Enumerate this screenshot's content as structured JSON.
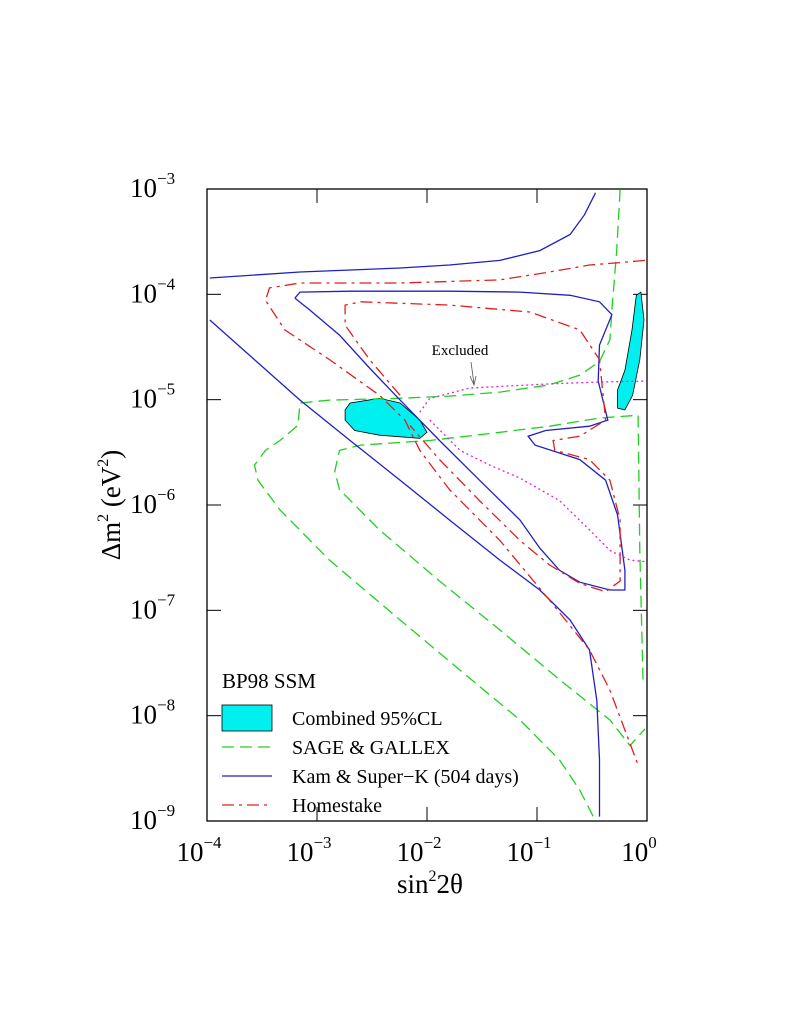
{
  "chart_data": {
    "type": "contour",
    "xscale": "log",
    "yscale": "log",
    "xlim": [
      0.0001,
      1
    ],
    "ylim": [
      1e-09,
      0.001
    ],
    "xticks": [
      {
        "value": 0.0001,
        "label": "10",
        "exponent": "−4"
      },
      {
        "value": 0.001,
        "label": "10",
        "exponent": "−3"
      },
      {
        "value": 0.01,
        "label": "10",
        "exponent": "−2"
      },
      {
        "value": 0.1,
        "label": "10",
        "exponent": "−1"
      },
      {
        "value": 1,
        "label": "10",
        "exponent": "0"
      }
    ],
    "yticks": [
      {
        "value": 1e-09,
        "label": "10",
        "exponent": "−9"
      },
      {
        "value": 1e-08,
        "label": "10",
        "exponent": "−8"
      },
      {
        "value": 1e-07,
        "label": "10",
        "exponent": "−7"
      },
      {
        "value": 1e-06,
        "label": "10",
        "exponent": "−6"
      },
      {
        "value": 1e-05,
        "label": "10",
        "exponent": "−5"
      },
      {
        "value": 0.0001,
        "label": "10",
        "exponent": "−4"
      },
      {
        "value": 0.001,
        "label": "10",
        "exponent": "−3"
      }
    ],
    "x_label": [
      "sin",
      "2",
      "2θ"
    ],
    "y_label": [
      "Δm",
      "2",
      " (eV",
      "2",
      ")"
    ],
    "legend_title": "BP98 SSM",
    "legend": "lower left",
    "annotation": {
      "text": "Excluded",
      "series": 4
    },
    "series": [
      {
        "name": "Combined 95%CL",
        "color": "#00f0f0",
        "line_style": "solid",
        "fill": true,
        "x": [
          0.0018,
          0.002,
          0.0037,
          0.0057,
          0.0086,
          0.01,
          0.0086,
          0.0037,
          0.0022,
          0.0018,
          null,
          0.54,
          0.54,
          0.63,
          0.73,
          0.8,
          0.88,
          0.94,
          0.86,
          0.74,
          0.63
        ],
        "y": [
          8e-06,
          9.3e-06,
          1.03e-05,
          9.3e-06,
          6.4e-06,
          4.9e-06,
          4.3e-06,
          4.6e-06,
          5.1e-06,
          6.4e-06,
          null,
          8.3e-06,
          1.24e-05,
          1.9e-05,
          4.6e-05,
          9.8e-05,
          0.000105,
          5.7e-05,
          2.4e-05,
          1.1e-05,
          8e-06
        ]
      },
      {
        "name": "SAGE & GALLEX",
        "color": "#20d020",
        "line_style": "dashed",
        "x": [
          0.57,
          0.53,
          0.48,
          0.46,
          0.37,
          0.245,
          0.13,
          0.046,
          0.016,
          0.0057,
          0.0013,
          0.0007,
          0.00067,
          0.00046,
          0.00034,
          0.00027,
          0.00029,
          0.00046,
          0.0013,
          0.0057,
          0.02,
          0.07,
          0.16,
          0.245,
          0.34,
          null,
          0.92,
          0.86,
          0.83,
          0.37,
          0.13,
          0.046,
          0.0106,
          0.0025,
          0.0016,
          0.00145,
          0.0016,
          0.0037,
          0.013,
          0.046,
          0.16,
          0.46,
          0.7,
          0.96
        ],
        "y": [
          0.00098,
          0.00026,
          7.1e-05,
          3.7e-05,
          2.3e-05,
          1.71e-05,
          1.38e-05,
          1.18e-05,
          1.08e-05,
          1.03e-05,
          9.9e-06,
          9.3e-06,
          5.7e-06,
          4.1e-06,
          3.3e-06,
          2.4e-06,
          1.72e-06,
          9e-07,
          3e-07,
          8.1e-08,
          2.7e-08,
          9.1e-09,
          3.8e-09,
          1.96e-09,
          1e-09,
          null,
          2.2e-08,
          3.7e-07,
          7.1e-06,
          6.7e-06,
          5.6e-06,
          4.9e-06,
          4.1e-06,
          3.7e-06,
          3.3e-06,
          2.1e-06,
          1.4e-06,
          5.8e-07,
          1.9e-07,
          6.5e-08,
          2.2e-08,
          9.1e-09,
          5.2e-09,
          7.5e-09
        ]
      },
      {
        "name": "Kam & Super−K (504 days)",
        "color": "#2020c0",
        "line_style": "solid",
        "x": [
          0.000106,
          0.0007,
          0.0057,
          0.016,
          0.046,
          0.106,
          0.2,
          0.27,
          0.34,
          null,
          0.000106,
          0.0007,
          0.002,
          0.0057,
          0.016,
          0.046,
          0.106,
          0.2,
          0.3,
          0.35,
          0.37,
          0.37,
          null,
          0.00063,
          0.0007,
          0.002,
          0.016,
          0.07,
          0.2,
          0.37,
          0.48,
          0.37,
          0.36,
          0.44,
          0.3,
          0.12,
          0.083,
          0.096,
          0.245,
          0.42,
          0.54,
          0.63,
          0.63,
          0.46,
          0.245,
          0.16,
          0.106,
          0.07,
          0.03,
          0.013,
          0.0057,
          0.003,
          0.0016,
          0.00086,
          0.00063
        ],
        "y": [
          0.000143,
          0.000163,
          0.000178,
          0.00019,
          0.00021,
          0.00026,
          0.00037,
          0.00057,
          0.00092,
          null,
          5.7e-05,
          9.9e-06,
          4.1e-06,
          1.72e-06,
          7.2e-07,
          3e-07,
          1.56e-07,
          8.1e-08,
          4.2e-08,
          1.4e-08,
          3.8e-09,
          1.1e-09,
          null,
          9.2e-05,
          0.000105,
          0.000107,
          0.000107,
          0.000105,
          9.8e-05,
          8.5e-05,
          6.4e-05,
          3.3e-05,
          1.5e-05,
          6.4e-06,
          5.6e-06,
          5.1e-06,
          4.5e-06,
          3.7e-06,
          2.7e-06,
          1.72e-06,
          8e-07,
          2.4e-07,
          1.56e-07,
          1.56e-07,
          1.85e-07,
          2.4e-07,
          3.9e-07,
          7.2e-07,
          1.72e-06,
          4.1e-06,
          9.9e-06,
          2e-05,
          4.1e-05,
          7.1e-05,
          9.2e-05
        ]
      },
      {
        "name": "Homestake",
        "color": "#e02020",
        "line_style": "dashdot",
        "x": [
          0.96,
          0.57,
          0.3,
          0.13,
          0.046,
          0.0057,
          0.0007,
          0.00037,
          0.00034,
          0.00051,
          0.0013,
          0.0037,
          0.0063,
          0.0086,
          0.016,
          0.046,
          0.13,
          0.3,
          0.46,
          0.63,
          0.83,
          null,
          0.0057,
          0.003,
          0.0018,
          0.0018,
          0.0025,
          0.016,
          0.086,
          0.245,
          0.37,
          0.42,
          0.245,
          0.14,
          0.145,
          0.3,
          0.46,
          0.57,
          0.57,
          0.42,
          0.245,
          0.13,
          0.07,
          0.03,
          0.013,
          0.007
        ],
        "y": [
          0.00021,
          0.0002,
          0.00019,
          0.000163,
          0.000137,
          0.000128,
          0.000128,
          0.000115,
          8.8e-05,
          4.6e-05,
          2.4e-05,
          1.1e-05,
          6.4e-06,
          3.3e-06,
          1.4e-06,
          4.6e-07,
          1.25e-07,
          4.2e-08,
          1.75e-08,
          7.3e-09,
          3.4e-09,
          null,
          1.1e-05,
          2.4e-05,
          5.1e-05,
          7.9e-05,
          8.5e-05,
          7.9e-05,
          6.8e-05,
          4.6e-05,
          2.4e-05,
          6.4e-06,
          4.5e-06,
          4.1e-06,
          3.3e-06,
          2.7e-06,
          1.72e-06,
          7.2e-07,
          1.9e-07,
          1.5e-07,
          1.8e-07,
          2.7e-07,
          4.6e-07,
          1.1e-06,
          2.7e-06,
          5.7e-06
        ]
      },
      {
        "color": "#e020e0",
        "line_style": "dotted",
        "x": [
          0.0086,
          0.0106,
          0.0246,
          0.13,
          0.37,
          0.96,
          null,
          0.0106,
          0.02,
          0.037,
          0.07,
          0.16,
          0.3,
          0.46,
          0.7,
          0.96
        ],
        "y": [
          7.6e-06,
          1.03e-05,
          1.29e-05,
          1.41e-05,
          1.47e-05,
          1.5e-05,
          null,
          6.4e-06,
          3.3e-06,
          2.4e-06,
          1.8e-06,
          1.1e-06,
          5.8e-07,
          3.7e-07,
          3e-07,
          2.9e-07
        ]
      }
    ]
  }
}
